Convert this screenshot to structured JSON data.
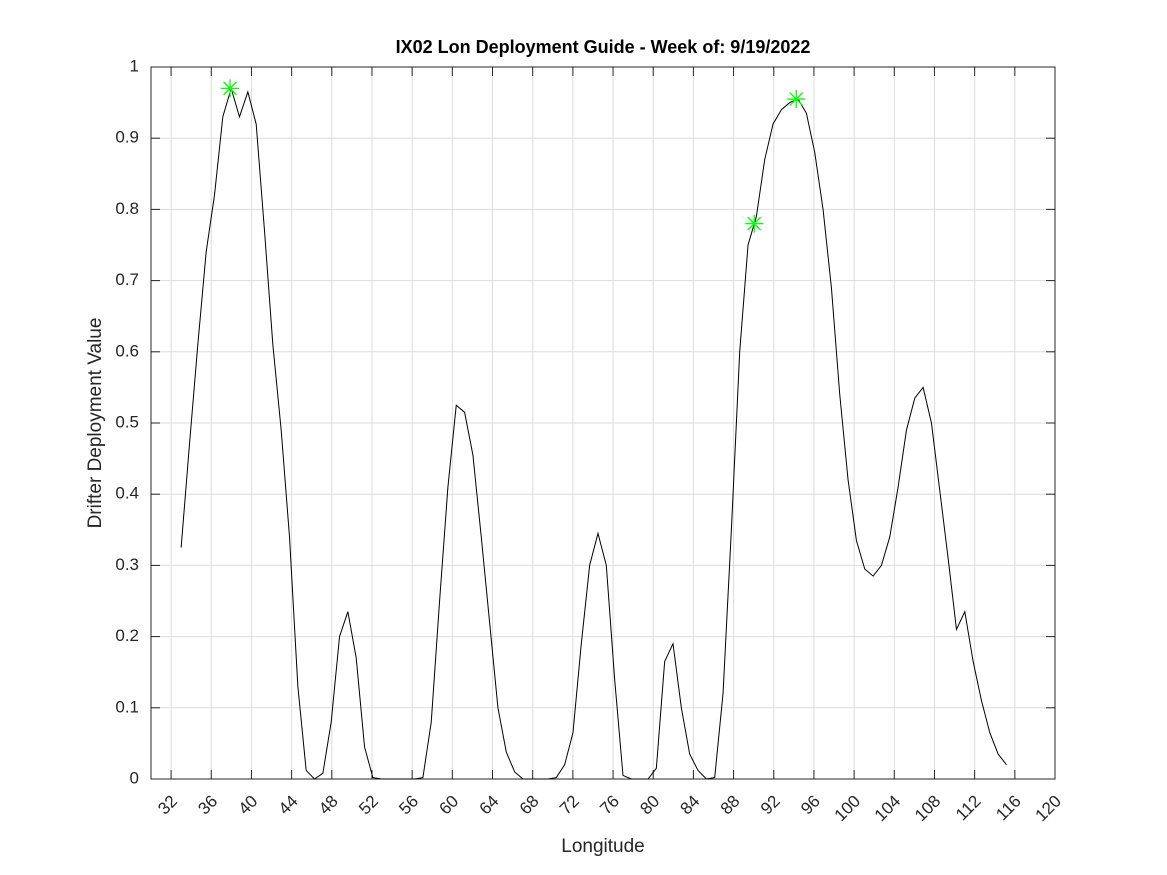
{
  "chart_data": {
    "type": "line",
    "title": "IX02 Lon Deployment Guide - Week of: 9/19/2022",
    "xlabel": "Longitude",
    "ylabel": "Drifter Deployment Value",
    "color": "#000000",
    "grid": true,
    "xlim": [
      30,
      120
    ],
    "ylim": [
      0,
      1
    ],
    "xticks": [
      32,
      36,
      40,
      44,
      48,
      52,
      56,
      60,
      64,
      68,
      72,
      76,
      80,
      84,
      88,
      92,
      96,
      100,
      104,
      108,
      112,
      116,
      120
    ],
    "yticks": [
      0,
      0.1,
      0.2,
      0.3,
      0.4,
      0.5,
      0.6,
      0.7,
      0.8,
      0.9,
      1
    ],
    "x": [
      33,
      33.83,
      34.66,
      35.49,
      36.32,
      37.15,
      37.98,
      38.81,
      39.64,
      40.47,
      41.3,
      42.13,
      42.96,
      43.79,
      44.62,
      45.45,
      46.28,
      47.11,
      47.94,
      48.77,
      49.6,
      50.43,
      51.26,
      52.09,
      52.92,
      53.75,
      54.58,
      55.41,
      56.24,
      57.07,
      57.9,
      58.73,
      59.56,
      60.39,
      61.22,
      62.05,
      62.88,
      63.71,
      64.54,
      65.37,
      66.2,
      67.03,
      67.86,
      68.69,
      69.52,
      70.35,
      71.18,
      72.01,
      72.84,
      73.67,
      74.5,
      75.33,
      76.16,
      76.99,
      77.82,
      78.65,
      79.48,
      80.31,
      81.14,
      81.97,
      82.8,
      83.63,
      84.46,
      85.29,
      86.12,
      86.95,
      87.78,
      88.61,
      89.44,
      90.27,
      91.1,
      91.93,
      92.76,
      93.59,
      94.42,
      95.25,
      96.08,
      96.91,
      97.74,
      98.57,
      99.4,
      100.23,
      101.06,
      101.89,
      102.72,
      103.55,
      104.38,
      105.21,
      106.04,
      106.87,
      107.7,
      108.53,
      109.36,
      110.19,
      111.02,
      111.85,
      112.68,
      113.51,
      114.34,
      115.17
    ],
    "values": [
      0.325,
      0.47,
      0.61,
      0.74,
      0.82,
      0.93,
      0.97,
      0.93,
      0.965,
      0.92,
      0.77,
      0.61,
      0.49,
      0.34,
      0.13,
      0.012,
      0,
      0.008,
      0.08,
      0.2,
      0.235,
      0.17,
      0.045,
      0.002,
      0,
      0,
      0,
      0,
      0,
      0.002,
      0.08,
      0.25,
      0.41,
      0.525,
      0.515,
      0.455,
      0.34,
      0.22,
      0.1,
      0.038,
      0.01,
      0,
      0,
      0,
      0,
      0.002,
      0.02,
      0.065,
      0.19,
      0.3,
      0.345,
      0.3,
      0.14,
      0.005,
      0,
      0,
      0,
      0.015,
      0.165,
      0.19,
      0.1,
      0.035,
      0.012,
      0,
      0.002,
      0.12,
      0.35,
      0.6,
      0.75,
      0.79,
      0.87,
      0.92,
      0.94,
      0.95,
      0.955,
      0.935,
      0.88,
      0.8,
      0.69,
      0.54,
      0.42,
      0.335,
      0.295,
      0.285,
      0.3,
      0.34,
      0.41,
      0.49,
      0.535,
      0.55,
      0.5,
      0.405,
      0.31,
      0.21,
      0.235,
      0.165,
      0.11,
      0.065,
      0.035,
      0.02
    ],
    "markers": {
      "color": "#00ff00",
      "x": [
        37.87,
        90.06,
        94.24
      ],
      "values": [
        0.97,
        0.78,
        0.955
      ]
    }
  }
}
